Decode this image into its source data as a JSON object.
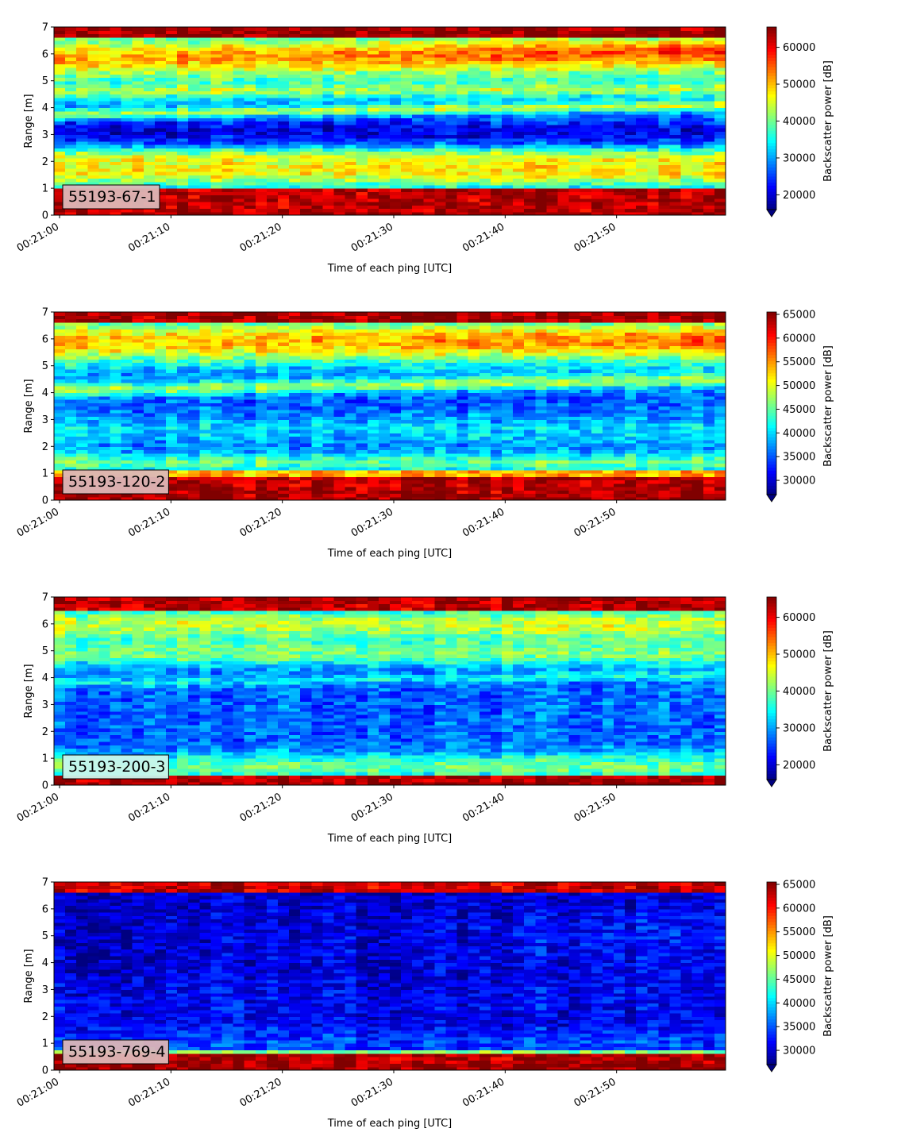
{
  "chart_data": [
    {
      "type": "heatmap",
      "label": "55193-67-1",
      "label_box_color": "#dcb7b7",
      "xlabel": "Time of each ping [UTC]",
      "ylabel": "Range [m]",
      "cbar_label": "Backscatter power [dB]",
      "x_ticks": [
        "00:21:00",
        "00:21:10",
        "00:21:20",
        "00:21:30",
        "00:21:40",
        "00:21:50"
      ],
      "y_ticks": [
        "0",
        "1",
        "2",
        "3",
        "4",
        "5",
        "6",
        "7"
      ],
      "ylim": [
        0,
        7
      ],
      "xlim_seconds": [
        0,
        59.5
      ],
      "cbar_ticks": [
        "20000",
        "30000",
        "40000",
        "50000",
        "60000"
      ],
      "cbar_range": [
        16000,
        65500
      ],
      "extend": "min",
      "colormap": "jet"
    },
    {
      "type": "heatmap",
      "label": "55193-120-2",
      "label_box_color": "#dcb7b7",
      "xlabel": "Time of each ping [UTC]",
      "ylabel": "Range [m]",
      "cbar_label": "Backscatter power [dB]",
      "x_ticks": [
        "00:21:00",
        "00:21:10",
        "00:21:20",
        "00:21:30",
        "00:21:40",
        "00:21:50"
      ],
      "y_ticks": [
        "0",
        "1",
        "2",
        "3",
        "4",
        "5",
        "6",
        "7"
      ],
      "ylim": [
        0,
        7
      ],
      "xlim_seconds": [
        0,
        59.5
      ],
      "cbar_ticks": [
        "30000",
        "35000",
        "40000",
        "45000",
        "50000",
        "55000",
        "60000",
        "65000"
      ],
      "cbar_range": [
        27000,
        65500
      ],
      "extend": "min",
      "colormap": "jet"
    },
    {
      "type": "heatmap",
      "label": "55193-200-3",
      "label_box_color": "#c9f5ec",
      "xlabel": "Time of each ping [UTC]",
      "ylabel": "Range [m]",
      "cbar_label": "Backscatter power [dB]",
      "x_ticks": [
        "00:21:00",
        "00:21:10",
        "00:21:20",
        "00:21:30",
        "00:21:40",
        "00:21:50"
      ],
      "y_ticks": [
        "0",
        "1",
        "2",
        "3",
        "4",
        "5",
        "6",
        "7"
      ],
      "ylim": [
        0,
        7
      ],
      "xlim_seconds": [
        0,
        59.5
      ],
      "cbar_ticks": [
        "20000",
        "30000",
        "40000",
        "50000",
        "60000"
      ],
      "cbar_range": [
        16000,
        65500
      ],
      "extend": "min",
      "colormap": "jet"
    },
    {
      "type": "heatmap",
      "label": "55193-769-4",
      "label_box_color": "#dcb7b7",
      "xlabel": "Time of each ping [UTC]",
      "ylabel": "Range [m]",
      "cbar_label": "Backscatter power [dB]",
      "x_ticks": [
        "00:21:00",
        "00:21:10",
        "00:21:20",
        "00:21:30",
        "00:21:40",
        "00:21:50"
      ],
      "y_ticks": [
        "0",
        "1",
        "2",
        "3",
        "4",
        "5",
        "6",
        "7"
      ],
      "ylim": [
        0,
        7
      ],
      "xlim_seconds": [
        0,
        59.5
      ],
      "cbar_ticks": [
        "30000",
        "35000",
        "40000",
        "45000",
        "50000",
        "55000",
        "60000",
        "65000"
      ],
      "cbar_range": [
        27000,
        65500
      ],
      "extend": "min",
      "colormap": "jet"
    }
  ]
}
